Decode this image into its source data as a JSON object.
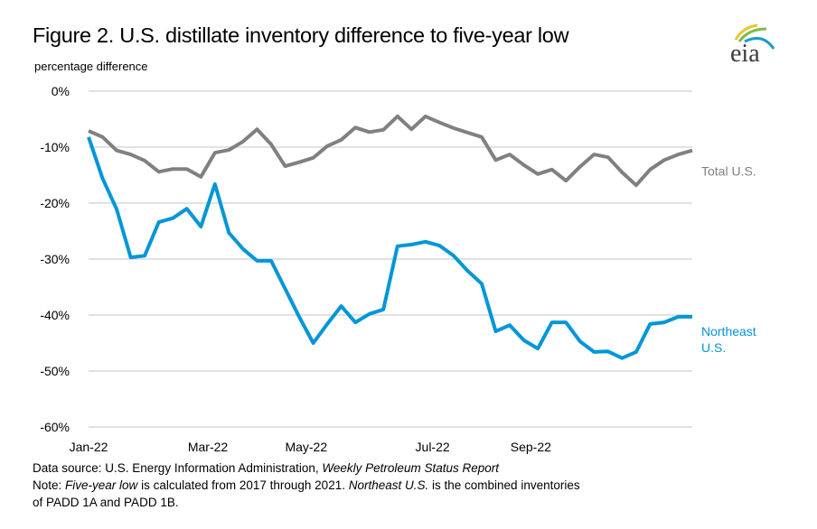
{
  "header": {
    "title": "Figure 2. U.S. distillate inventory difference to five-year low",
    "logo_text": "eia"
  },
  "chart_data": {
    "type": "line",
    "title": "Figure 2. U.S. distillate inventory difference to five-year low",
    "ylabel": "percentage difference",
    "xlabel": "",
    "ylim": [
      -60,
      0
    ],
    "yticks": [
      0,
      -10,
      -20,
      -30,
      -40,
      -50,
      -60
    ],
    "ytick_labels": [
      "0%",
      "-10%",
      "-20%",
      "-30%",
      "-40%",
      "-50%",
      "-60%"
    ],
    "x_tick_labels": [
      "Jan-22",
      "Mar-22",
      "May-22",
      "Jul-22",
      "Sep-22"
    ],
    "x_tick_index": [
      0,
      8.5,
      15.5,
      24.5,
      31.5
    ],
    "frequency": "weekly",
    "grid": "horizontal",
    "legend": "inline-right",
    "series": [
      {
        "name": "Total U.S.",
        "label_lines": [
          "Total U.S."
        ],
        "color": "#808080",
        "values": [
          -7.1,
          -8.2,
          -10.6,
          -11.3,
          -12.4,
          -14.4,
          -13.9,
          -13.9,
          -15.3,
          -11.0,
          -10.5,
          -9.0,
          -6.8,
          -9.5,
          -13.4,
          -12.7,
          -11.9,
          -9.8,
          -8.7,
          -6.5,
          -7.3,
          -6.9,
          -4.5,
          -6.8,
          -4.5,
          -5.6,
          -6.6,
          -7.4,
          -8.2,
          -12.3,
          -11.3,
          -13.2,
          -14.8,
          -14.0,
          -16.0,
          -13.5,
          -11.3,
          -11.8,
          -14.5,
          -16.8,
          -14.0,
          -12.3,
          -11.3,
          -10.6
        ]
      },
      {
        "name": "Northeast U.S.",
        "label_lines": [
          "Northeast",
          "U.S."
        ],
        "color": "#0096d7",
        "values": [
          -8.2,
          -15.6,
          -21.1,
          -29.7,
          -29.4,
          -23.4,
          -22.7,
          -21.0,
          -24.2,
          -16.6,
          -25.3,
          -28.2,
          -30.3,
          -30.3,
          -35.3,
          -40.3,
          -45.0,
          -41.6,
          -38.4,
          -41.3,
          -39.8,
          -39.0,
          -27.7,
          -27.4,
          -26.9,
          -27.6,
          -29.4,
          -32.1,
          -34.4,
          -42.9,
          -41.8,
          -44.5,
          -46.0,
          -41.3,
          -41.3,
          -44.7,
          -46.6,
          -46.5,
          -47.7,
          -46.6,
          -41.6,
          -41.3,
          -40.3,
          -40.3
        ]
      }
    ]
  },
  "footer": {
    "source_prefix": "Data source: U.S. Energy Information Administration, ",
    "source_italic": "Weekly Petroleum Status Report",
    "note_prefix": "Note: ",
    "note_italic1": "Five-year low",
    "note_mid": " is calculated from 2017 through 2021. ",
    "note_italic2": "Northeast U.S.",
    "note_suffix": " is the combined inventories",
    "note_line2": "of PADD 1A and PADD 1B."
  }
}
